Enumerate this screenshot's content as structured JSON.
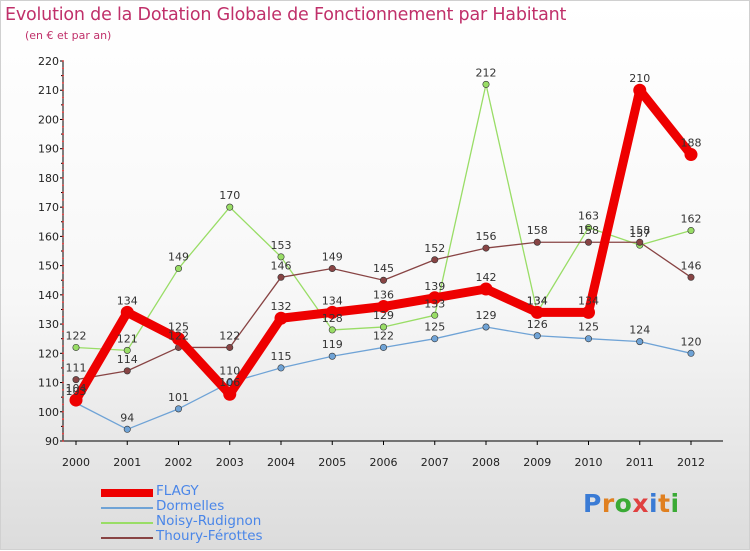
{
  "header": {
    "title": "Evolution de la Dotation Globale de Fonctionnement par Habitant",
    "subtitle": "(en € et par an)"
  },
  "logo": {
    "letters": [
      "P",
      "r",
      "o",
      "x",
      "i",
      "t",
      "i"
    ],
    "colors": [
      "#3a7bd5",
      "#e08020",
      "#3aaa35",
      "#e04040",
      "#3a7bd5",
      "#e08020",
      "#3aaa35"
    ]
  },
  "chart_data": {
    "type": "line",
    "title": "Evolution de la Dotation Globale de Fonctionnement par Habitant",
    "subtitle": "(en € et par an)",
    "xlabel": "",
    "ylabel": "",
    "x": [
      "2000",
      "2001",
      "2002",
      "2003",
      "2004",
      "2005",
      "2006",
      "2007",
      "2008",
      "2009",
      "2010",
      "2011",
      "2012"
    ],
    "ylim": [
      90,
      220
    ],
    "yticks": [
      90,
      100,
      110,
      120,
      130,
      140,
      150,
      160,
      170,
      180,
      190,
      200,
      210,
      220
    ],
    "grid": false,
    "legend_position": "bottom-left",
    "series": [
      {
        "name": "FLAGY",
        "color": "#ee0000",
        "values": [
          104,
          134,
          125,
          106,
          132,
          134,
          136,
          139,
          142,
          134,
          134,
          210,
          188
        ],
        "labels": [
          "104",
          "134",
          "125",
          "106",
          "132",
          "134",
          "136",
          "139",
          "142",
          "134",
          "134",
          "210",
          "188"
        ]
      },
      {
        "name": "Dormelles",
        "color": "#6fa3d6",
        "values": [
          103,
          94,
          101,
          110,
          115,
          119,
          122,
          125,
          129,
          126,
          125,
          124,
          120
        ],
        "labels": [
          "103",
          "94",
          "101",
          "110",
          "115",
          "119",
          "122",
          "125",
          "129",
          "126",
          "125",
          "124",
          "120"
        ]
      },
      {
        "name": "Noisy-Rudignon",
        "color": "#99dd66",
        "values": [
          122,
          121,
          149,
          170,
          153,
          128,
          129,
          133,
          212,
          134,
          163,
          157,
          162
        ],
        "labels": [
          "122",
          "121",
          "149",
          "170",
          "153",
          "128",
          "129",
          "133",
          "212",
          "134",
          "163",
          "157",
          "162"
        ]
      },
      {
        "name": "Thoury-Férottes",
        "color": "#884444",
        "values": [
          111,
          114,
          122,
          122,
          146,
          149,
          145,
          152,
          156,
          158,
          158,
          158,
          146
        ],
        "labels": [
          "111",
          "114",
          "122",
          "122",
          "146",
          "149",
          "145",
          "152",
          "156",
          "158",
          "158",
          "158",
          "146"
        ]
      }
    ]
  }
}
